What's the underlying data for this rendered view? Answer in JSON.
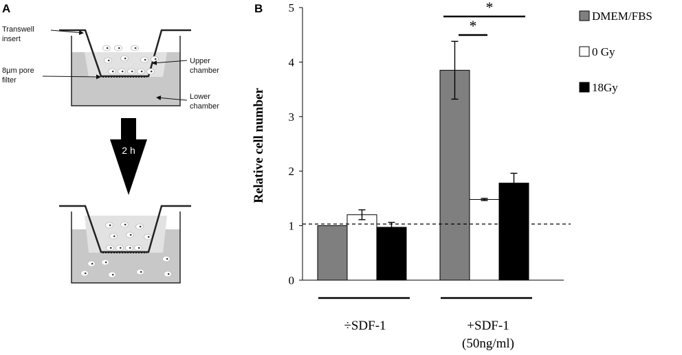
{
  "panel_a": {
    "label": "A",
    "insert_label_line1": "Transwell",
    "insert_label_line2": "insert",
    "filter_label_line1": "8µm pore",
    "filter_label_line2": "filter",
    "upper_label_line1": "Upper",
    "upper_label_line2": "chamber",
    "lower_label_line1": "Lower",
    "lower_label_line2": "chamber",
    "time_label": "2 h"
  },
  "panel_b": {
    "label": "B",
    "significance_marker_1": "*",
    "significance_marker_2": "*",
    "group_1_label": "÷SDF-1",
    "group_2_label_line1": "+SDF-1",
    "group_2_label_line2": "(50ng/ml)"
  },
  "chart_data": {
    "type": "bar",
    "title": "",
    "xlabel": "",
    "ylabel": "Relative cell number",
    "ylim": [
      0,
      5
    ],
    "yticks": [
      "0",
      "1",
      "2",
      "3",
      "4",
      "5"
    ],
    "categories": [
      "÷SDF-1",
      "+SDF-1 (50ng/ml)"
    ],
    "series": [
      {
        "name": "DMEM/FBS",
        "color": "#7f7f7f",
        "values": [
          1.0,
          3.85
        ],
        "errors": [
          0.0,
          0.53
        ]
      },
      {
        "name": "0 Gy",
        "color": "#ffffff",
        "values": [
          1.2,
          1.48
        ],
        "errors": [
          0.09,
          0.02
        ]
      },
      {
        "name": "18Gy",
        "color": "#000000",
        "values": [
          0.97,
          1.78
        ],
        "errors": [
          0.09,
          0.18
        ]
      }
    ],
    "reference_line": 1.03,
    "legend": "right"
  }
}
